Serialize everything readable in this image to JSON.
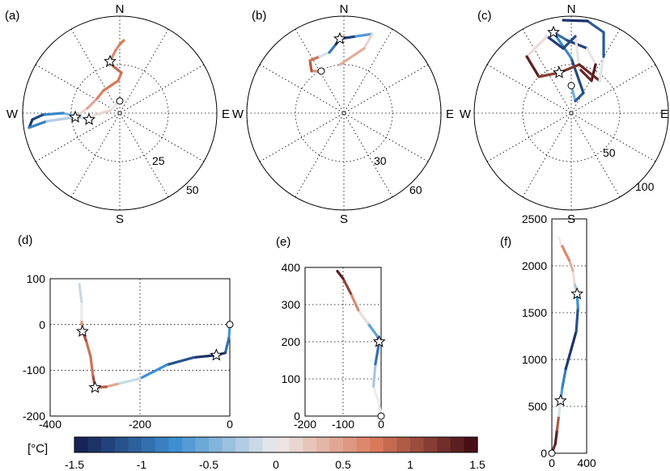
{
  "chart_data": [
    {
      "type": "polar-line",
      "panel": "(a)",
      "compass": [
        "N",
        "E",
        "S",
        "W"
      ],
      "radial_ticks": [
        "25",
        "50"
      ],
      "rmax": 50,
      "anomaly": [
        0.0,
        0.1,
        0.2,
        0.0,
        -0.3,
        -0.6,
        -1.0,
        -1.4,
        -1.2,
        -0.5,
        0.0,
        0.3,
        0.6,
        0.8,
        0.7,
        0.8,
        0.9,
        0.7,
        0.6,
        0.7,
        0.8
      ],
      "markers": [
        {
          "shape": "circle",
          "index": 0
        },
        {
          "shape": "star",
          "index": 3
        },
        {
          "shape": "star",
          "index": 10
        },
        {
          "shape": "star",
          "index": 17
        }
      ]
    },
    {
      "type": "polar-line",
      "panel": "(b)",
      "compass": [
        "N",
        "E",
        "S",
        "W"
      ],
      "radial_ticks": [
        "30",
        "60"
      ],
      "rmax": 60,
      "anomaly": [
        0.5,
        0.7,
        1.2,
        0.4,
        -0.6,
        -1.2,
        -1.4,
        -1.1,
        -0.2,
        0.5,
        0.3
      ],
      "markers": [
        {
          "shape": "circle",
          "index": 0
        },
        {
          "shape": "star",
          "index": 6
        }
      ]
    },
    {
      "type": "polar-line",
      "panel": "(c)",
      "compass": [
        "N",
        "E",
        "S",
        "W"
      ],
      "radial_ticks": [
        "50",
        "100"
      ],
      "rmax": 100,
      "anomaly": [
        -0.2,
        -0.8,
        -1.4,
        -1.0,
        -0.6,
        -1.3,
        -1.2,
        1.3,
        1.5,
        1.1,
        -1.0,
        -1.4,
        -1.2,
        1.4,
        1.3,
        1.0,
        1.4,
        1.2,
        -1.3,
        -0.9,
        -1.3,
        -1.4
      ],
      "markers": [
        {
          "shape": "circle",
          "index": 0
        },
        {
          "shape": "star",
          "index": 4
        },
        {
          "shape": "star",
          "index": 15
        }
      ]
    },
    {
      "type": "line",
      "panel": "(d)",
      "xlim": [
        -400,
        0
      ],
      "ylim": [
        -200,
        100
      ],
      "xticks": [
        "-400",
        "-200",
        "0"
      ],
      "yticks": [
        "-200",
        "-100",
        "0",
        "100"
      ],
      "points": [
        [
          0,
          0
        ],
        [
          -2,
          -30
        ],
        [
          -10,
          -62
        ],
        [
          -30,
          -67
        ],
        [
          -80,
          -72
        ],
        [
          -140,
          -88
        ],
        [
          -200,
          -118
        ],
        [
          -250,
          -130
        ],
        [
          -275,
          -136
        ],
        [
          -300,
          -138
        ],
        [
          -305,
          -110
        ],
        [
          -310,
          -70
        ],
        [
          -320,
          -35
        ],
        [
          -328,
          -15
        ],
        [
          -330,
          10
        ],
        [
          -330,
          50
        ],
        [
          -335,
          88
        ]
      ],
      "anomaly": [
        -0.6,
        -0.8,
        -1.1,
        -1.4,
        -1.3,
        -1.0,
        -0.5,
        0.2,
        0.7,
        1.2,
        0.9,
        0.7,
        0.9,
        1.1,
        0.1,
        -0.1,
        -0.2
      ],
      "markers": [
        {
          "shape": "circle",
          "index": 0
        },
        {
          "shape": "star",
          "index": 3
        },
        {
          "shape": "star",
          "index": 9
        },
        {
          "shape": "star",
          "index": 13
        }
      ]
    },
    {
      "type": "line",
      "panel": "(e)",
      "xlim": [
        -200,
        0
      ],
      "ylim": [
        0,
        400
      ],
      "xticks": [
        "-200",
        "-100",
        "0"
      ],
      "yticks": [
        "0",
        "100",
        "200",
        "300",
        "400"
      ],
      "points": [
        [
          0,
          0
        ],
        [
          -5,
          30
        ],
        [
          -20,
          80
        ],
        [
          -15,
          140
        ],
        [
          -5,
          200
        ],
        [
          -10,
          215
        ],
        [
          -35,
          250
        ],
        [
          -60,
          285
        ],
        [
          -80,
          330
        ],
        [
          -100,
          370
        ],
        [
          -115,
          390
        ]
      ],
      "anomaly": [
        0.0,
        -0.1,
        0.1,
        -0.7,
        -1.2,
        -1.0,
        -0.2,
        0.4,
        0.9,
        1.3,
        1.4
      ],
      "markers": [
        {
          "shape": "circle",
          "index": 0
        },
        {
          "shape": "star",
          "index": 4
        }
      ]
    },
    {
      "type": "line",
      "panel": "(f)",
      "xlim": [
        0,
        400
      ],
      "ylim": [
        0,
        2500
      ],
      "xticks": [
        "0",
        "400"
      ],
      "yticks": [
        "0",
        "500",
        "1000",
        "1500",
        "2000",
        "2500"
      ],
      "points": [
        [
          0,
          0
        ],
        [
          40,
          100
        ],
        [
          60,
          250
        ],
        [
          80,
          400
        ],
        [
          100,
          560
        ],
        [
          120,
          700
        ],
        [
          160,
          900
        ],
        [
          220,
          1100
        ],
        [
          280,
          1300
        ],
        [
          300,
          1550
        ],
        [
          290,
          1700
        ],
        [
          260,
          1820
        ],
        [
          240,
          1950
        ],
        [
          200,
          2060
        ],
        [
          150,
          2150
        ],
        [
          110,
          2230
        ],
        [
          80,
          2300
        ]
      ],
      "anomaly": [
        1.1,
        1.4,
        1.3,
        0.6,
        -0.8,
        -0.5,
        -1.2,
        -1.4,
        -1.3,
        -1.0,
        -0.5,
        -0.1,
        0.3,
        0.5,
        0.8,
        0.5,
        -0.5
      ],
      "markers": [
        {
          "shape": "circle",
          "index": 0
        },
        {
          "shape": "star",
          "index": 4
        },
        {
          "shape": "star",
          "index": 10
        }
      ]
    }
  ],
  "colorbar": {
    "label": "[°C]",
    "min": -1.5,
    "max": 1.5,
    "ticks": [
      "-1.5",
      "-1",
      "-0.5",
      "0",
      "0.5",
      "1",
      "1.5"
    ],
    "bins": 30,
    "colors": {
      "cold": "#141c4e",
      "mid_cold": "#3d8fd1",
      "neutral": "#ececec",
      "mid_warm": "#d9795a",
      "warm": "#3d0812"
    }
  }
}
